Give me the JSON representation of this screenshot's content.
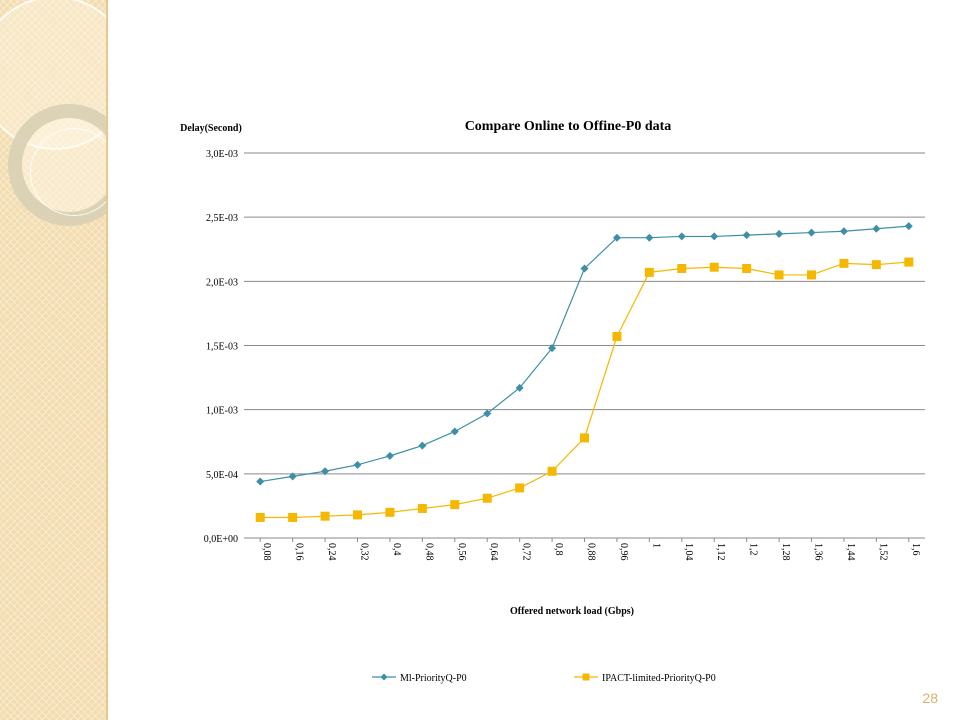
{
  "page": {
    "number": "28"
  },
  "chart_data": {
    "type": "line",
    "title": "Compare Online to Offine-P0 data",
    "xlabel": "Offered network load (Gbps)",
    "ylabel": "Delay(Second)",
    "ylim": [
      0,
      0.003
    ],
    "yticks": [
      {
        "value": 0,
        "label": "0,0E+00"
      },
      {
        "value": 0.0005,
        "label": "5,0E-04"
      },
      {
        "value": 0.001,
        "label": "1,0E-03"
      },
      {
        "value": 0.0015,
        "label": "1,5E-03"
      },
      {
        "value": 0.002,
        "label": "2,0E-03"
      },
      {
        "value": 0.0025,
        "label": "2,5E-03"
      },
      {
        "value": 0.003,
        "label": "3,0E-03"
      }
    ],
    "categories": [
      "0,08",
      "0,16",
      "0,24",
      "0,32",
      "0,4",
      "0,48",
      "0,56",
      "0,64",
      "0,72",
      "0,8",
      "0,88",
      "0,96",
      "1",
      "1,04",
      "1,12",
      "1,2",
      "1,28",
      "1,36",
      "1,44",
      "1,52",
      "1,6"
    ],
    "grid": "horizontal",
    "legend_position": "bottom",
    "series": [
      {
        "name": "Ml-PriorityQ-P0",
        "color": "#3d8fa8",
        "marker": "diamond",
        "values": [
          0.00044,
          0.00048,
          0.00052,
          0.00057,
          0.00064,
          0.00072,
          0.00083,
          0.00097,
          0.00117,
          0.00148,
          0.0021,
          0.00234,
          0.00234,
          0.00235,
          0.00235,
          0.00236,
          0.00237,
          0.00238,
          0.00239,
          0.00241,
          0.00243
        ]
      },
      {
        "name": "IPACT-limited-PriorityQ-P0",
        "color": "#f5b800",
        "marker": "square",
        "values": [
          0.00016,
          0.00016,
          0.00017,
          0.00018,
          0.0002,
          0.00023,
          0.00026,
          0.00031,
          0.00039,
          0.00052,
          0.00078,
          0.00157,
          0.00207,
          0.0021,
          0.00211,
          0.0021,
          0.00205,
          0.00205,
          0.00214,
          0.00213,
          0.00215
        ]
      }
    ]
  }
}
